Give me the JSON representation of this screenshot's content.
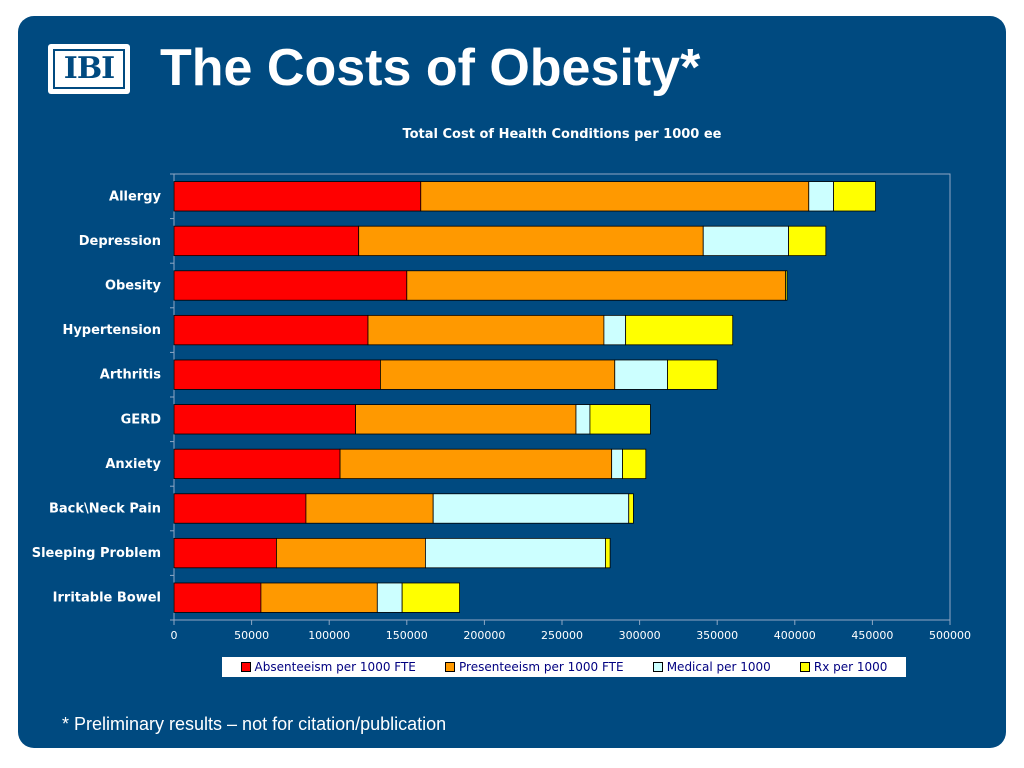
{
  "slide": {
    "logo_text": "IBI",
    "title": "The Costs of Obesity*",
    "footnote": "* Preliminary results – not for citation/publication"
  },
  "chart_data": {
    "type": "bar",
    "orientation": "horizontal",
    "stacked": true,
    "title": "Total Cost of Health Conditions per 1000 ee",
    "xlabel": "",
    "ylabel": "",
    "xlim": [
      0,
      500000
    ],
    "x_ticks": [
      0,
      50000,
      100000,
      150000,
      200000,
      250000,
      300000,
      350000,
      400000,
      450000,
      500000
    ],
    "grid": false,
    "legend_position": "bottom",
    "categories": [
      "Allergy",
      "Depression",
      "Obesity",
      "Hypertension",
      "Arthritis",
      "GERD",
      "Anxiety",
      "Back\\Neck Pain",
      "Sleeping Problem",
      "Irritable Bowel"
    ],
    "series": [
      {
        "name": "Absenteeism per 1000 FTE",
        "color": "#ff0000",
        "values": [
          159000,
          119000,
          150000,
          125000,
          133000,
          117000,
          107000,
          85000,
          66000,
          56000
        ]
      },
      {
        "name": "Presenteeism per 1000 FTE",
        "color": "#ff9900",
        "values": [
          250000,
          222000,
          244000,
          152000,
          151000,
          142000,
          175000,
          82000,
          96000,
          75000
        ]
      },
      {
        "name": "Medical per 1000",
        "color": "#ccffff",
        "values": [
          16000,
          55000,
          0,
          14000,
          34000,
          9000,
          7000,
          126000,
          116000,
          16000
        ]
      },
      {
        "name": "Rx per 1000",
        "color": "#ffff00",
        "values": [
          27000,
          24000,
          1000,
          69000,
          32000,
          39000,
          15000,
          3000,
          3000,
          37000
        ]
      }
    ]
  }
}
